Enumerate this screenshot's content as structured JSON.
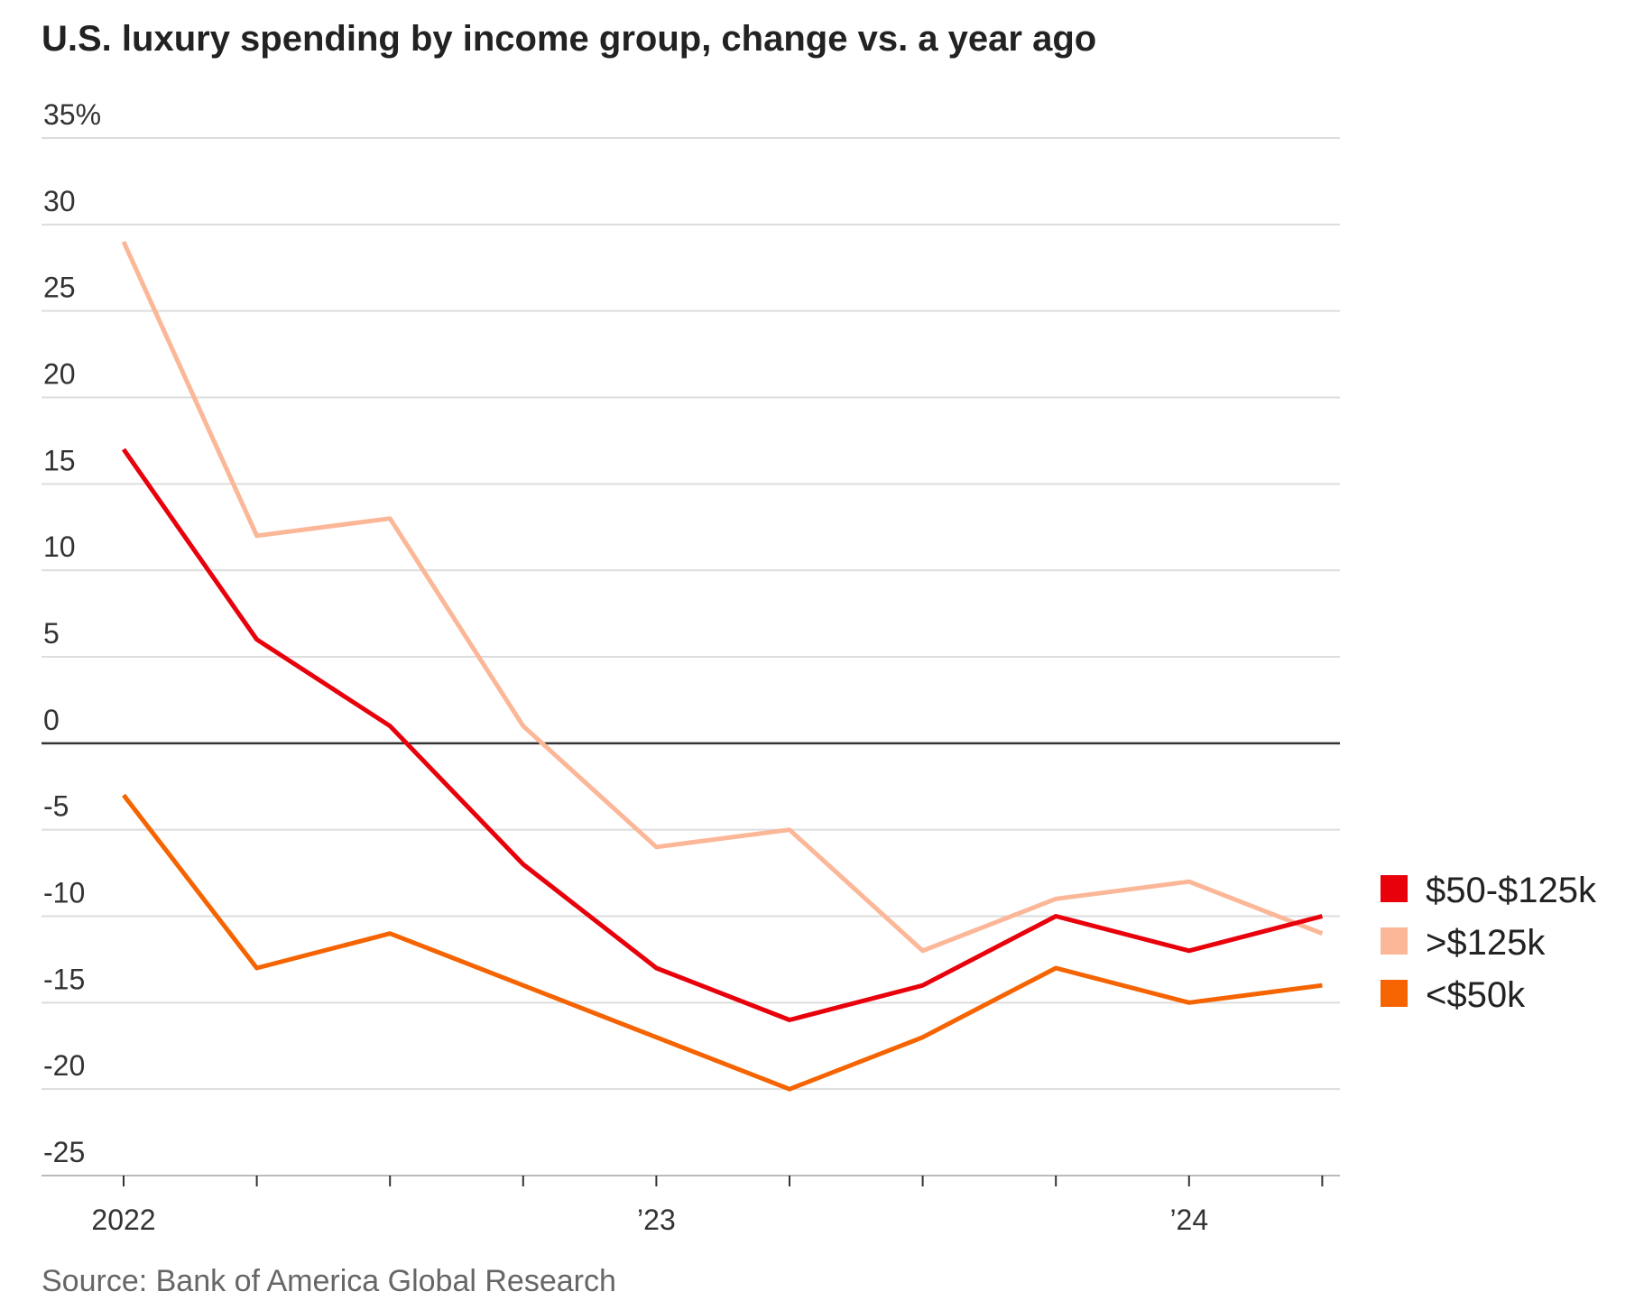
{
  "chart_data": {
    "type": "line",
    "title": "U.S. luxury spending by income group, change vs. a year ago",
    "source": "Source: Bank of America Global Research",
    "x": [
      "2022 Q1",
      "2022 Q2",
      "2022 Q3",
      "2022 Q4",
      "2023 Q1",
      "2023 Q2",
      "2023 Q3",
      "2023 Q4",
      "2024 Q1",
      "2024 Q2"
    ],
    "x_tick_labels": [
      {
        "index": 0,
        "label": "2022"
      },
      {
        "index": 4,
        "label": "’23"
      },
      {
        "index": 8,
        "label": "’24"
      }
    ],
    "y_ticks": [
      35,
      30,
      25,
      20,
      15,
      10,
      5,
      0,
      -5,
      -10,
      -15,
      -20,
      -25
    ],
    "y_tick_labels": [
      "35%",
      "30",
      "25",
      "20",
      "15",
      "10",
      "5",
      "0",
      "-5",
      "-10",
      "-15",
      "-20",
      "-25"
    ],
    "ylim": [
      -25,
      35
    ],
    "grid": true,
    "legend_position": "right",
    "series": [
      {
        "name": "$50-$125k",
        "color": "#e8000b",
        "values": [
          17,
          6,
          1,
          -7,
          -13,
          -16,
          -14,
          -10,
          -12,
          -10
        ]
      },
      {
        "name": ">$125k",
        "color": "#fbb797",
        "values": [
          29,
          12,
          13,
          1,
          -6,
          -5,
          -12,
          -9,
          -8,
          -11
        ]
      },
      {
        "name": "<$50k",
        "color": "#f56400",
        "values": [
          -3,
          -13,
          -11,
          -14,
          -17,
          -20,
          -17,
          -13,
          -15,
          -14
        ]
      }
    ]
  }
}
